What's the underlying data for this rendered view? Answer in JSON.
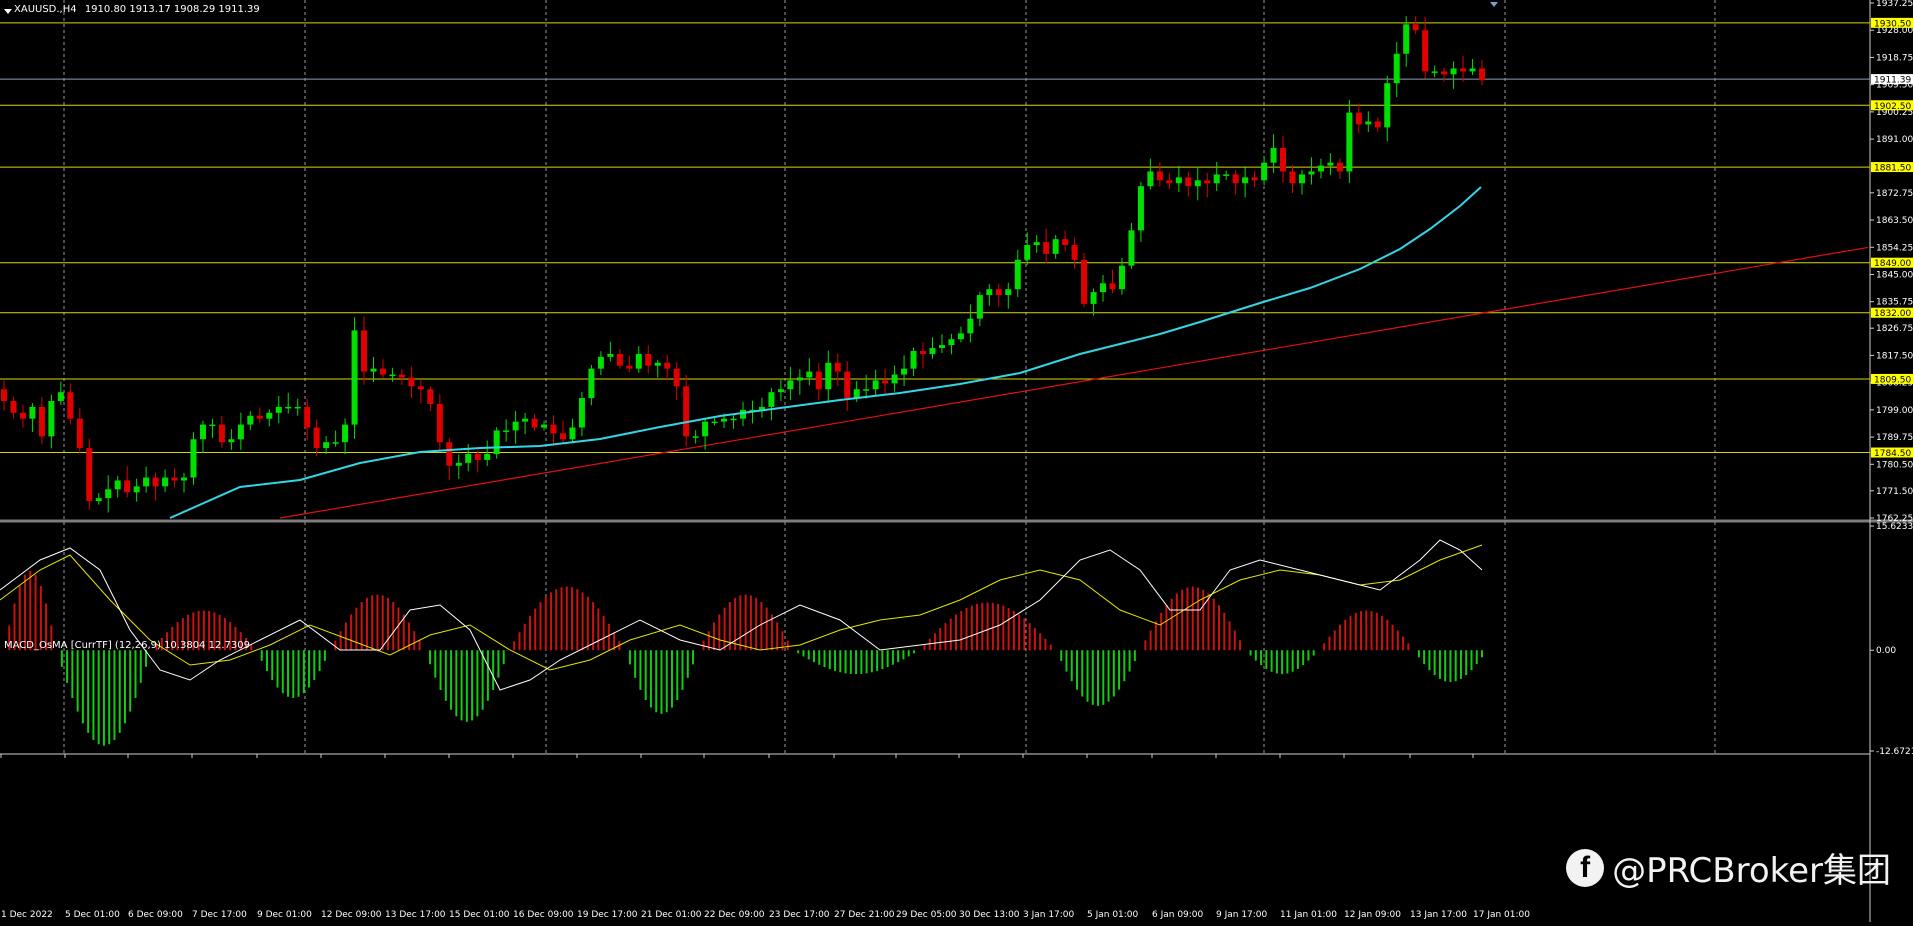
{
  "header": {
    "symbol": "XAUUSD.,H4",
    "ohlc": "1910.80 1913.17 1908.29 1911.39",
    "macd_label": "MACD_OsMA [CurrTF] (12,26,9) 10.3804 12.7309"
  },
  "watermark": {
    "icon": "facebook-icon",
    "text": "@PRCBroker集团"
  },
  "colors": {
    "background": "#000000",
    "bull": "#00e000",
    "bear": "#e00000",
    "ma": "#33d6e6",
    "trendline": "#e01010",
    "level": "#d8d800",
    "level_label_bg": "#ffff00",
    "grid": "#9a9a9a",
    "hist_pos": "#cc1111",
    "hist_neg": "#11cc11",
    "macd_line": "#ffffff",
    "signal_line": "#e6e600"
  },
  "chart_data": [
    {
      "type": "candlestick",
      "instrument": "XAUUSD.",
      "timeframe": "H4",
      "y_ticks": [
        "1937.25",
        "1928.00",
        "1918.75",
        "1909.50",
        "1900.25",
        "1891.00",
        "1872.75",
        "1863.50",
        "1854.25",
        "1845.00",
        "1835.75",
        "1826.75",
        "1817.50",
        "1808.25",
        "1799.00",
        "1789.75",
        "1780.50",
        "1771.50",
        "1762.25"
      ],
      "y_range": [
        1762.25,
        1937.25
      ],
      "price_label": "1911.39",
      "levels": [
        "1930.50",
        "1902.50",
        "1881.50",
        "1849.00",
        "1832.00",
        "1809.50",
        "1784.50"
      ],
      "x_labels": [
        "1 Dec 2022",
        "5 Dec 01:00",
        "6 Dec 09:00",
        "7 Dec 17:00",
        "9 Dec 01:00",
        "12 Dec 09:00",
        "13 Dec 17:00",
        "15 Dec 01:00",
        "16 Dec 09:00",
        "19 Dec 17:00",
        "21 Dec 01:00",
        "22 Dec 09:00",
        "23 Dec 17:00",
        "27 Dec 21:00",
        "29 Dec 05:00",
        "30 Dec 13:00",
        "3 Jan 17:00",
        "5 Jan 01:00",
        "6 Jan 09:00",
        "9 Jan 17:00",
        "11 Jan 01:00",
        "12 Jan 09:00",
        "13 Jan 17:00",
        "17 Jan 01:00"
      ],
      "close": [
        1802,
        1798,
        1796,
        1800,
        1790,
        1802,
        1805,
        1796,
        1786,
        1768,
        1769,
        1772,
        1775,
        1771,
        1773,
        1776,
        1773,
        1776,
        1775,
        1776,
        1789,
        1794,
        1794,
        1788,
        1789,
        1794,
        1797,
        1796,
        1798,
        1800,
        1800,
        1800,
        1793,
        1786,
        1788,
        1788,
        1794,
        1826,
        1812,
        1813,
        1811,
        1811,
        1810,
        1807,
        1806,
        1801,
        1788,
        1780,
        1781,
        1784,
        1782,
        1784,
        1792,
        1792,
        1795,
        1796,
        1793,
        1794,
        1791,
        1789,
        1793,
        1803,
        1813,
        1817,
        1818,
        1814,
        1813,
        1818,
        1814,
        1815,
        1813,
        1807,
        1790,
        1790,
        1795,
        1795,
        1796,
        1796,
        1799,
        1799,
        1800,
        1805,
        1806,
        1809,
        1810,
        1812,
        1806,
        1815,
        1812,
        1803,
        1806,
        1806,
        1809,
        1808,
        1811,
        1813,
        1819,
        1818,
        1820,
        1821,
        1823,
        1825,
        1830,
        1838,
        1840,
        1838,
        1840,
        1850,
        1855,
        1856,
        1852,
        1857,
        1855,
        1850,
        1835,
        1839,
        1842,
        1840,
        1848,
        1860,
        1875,
        1880,
        1877,
        1876,
        1878,
        1875,
        1877,
        1876,
        1879,
        1879,
        1876,
        1878,
        1877,
        1883,
        1888,
        1880,
        1876,
        1879,
        1880,
        1882,
        1883,
        1880,
        1900,
        1896,
        1897,
        1895,
        1910,
        1920,
        1930,
        1928,
        1914,
        1914,
        1913,
        1915,
        1914,
        1915,
        1911
      ],
      "ma_series_role": "moving average",
      "trendline_role": "support trendline"
    },
    {
      "type": "histogram_line",
      "indicator": "MACD_OsMA [CurrTF] (12,26,9)",
      "y_ticks": [
        "15.6233",
        "0.00",
        "-12.6721"
      ],
      "y_range": [
        -12.6721,
        15.6233
      ]
    }
  ]
}
